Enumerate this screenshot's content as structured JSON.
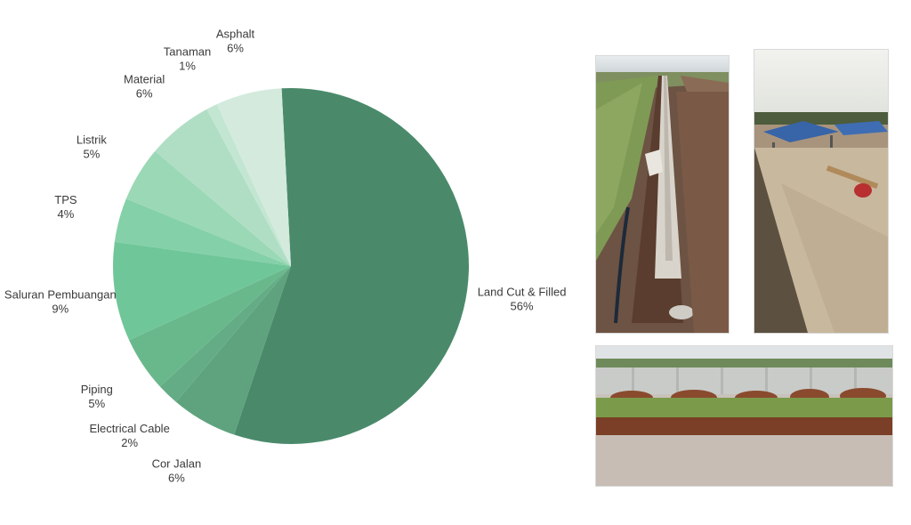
{
  "chart_data": {
    "type": "pie",
    "slices": [
      {
        "label": "Land Cut & Filled",
        "percent_label": "56%",
        "value": 56,
        "color": "#4a8a6b"
      },
      {
        "label": "Cor Jalan",
        "percent_label": "6%",
        "value": 6,
        "color": "#5ea37e"
      },
      {
        "label": "Electrical Cable",
        "percent_label": "2%",
        "value": 2,
        "color": "#64ac85"
      },
      {
        "label": "Piping",
        "percent_label": "5%",
        "value": 5,
        "color": "#69b88c"
      },
      {
        "label": "Saluran Pembuangan",
        "percent_label": "9%",
        "value": 9,
        "color": "#6fc699"
      },
      {
        "label": "TPS",
        "percent_label": "4%",
        "value": 4,
        "color": "#84d0a8"
      },
      {
        "label": "Listrik",
        "percent_label": "5%",
        "value": 5,
        "color": "#9ad8b6"
      },
      {
        "label": "Material",
        "percent_label": "6%",
        "value": 6,
        "color": "#b0dec5"
      },
      {
        "label": "Tanaman",
        "percent_label": "1%",
        "value": 1,
        "color": "#c3e6d2"
      },
      {
        "label": "Asphalt",
        "percent_label": "6%",
        "value": 6,
        "color": "#d3eadd"
      }
    ],
    "start_angle_deg": -3,
    "direction": "clockwise"
  },
  "photos": [
    {
      "subject": "drainage-trench-photo"
    },
    {
      "subject": "tent-work-site-photo"
    },
    {
      "subject": "excavated-field-photo"
    }
  ]
}
